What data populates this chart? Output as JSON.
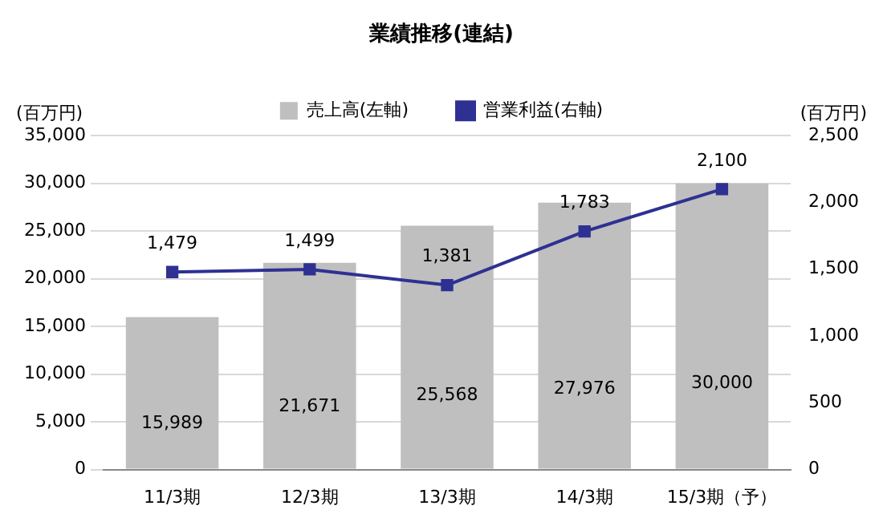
{
  "chart_data": {
    "type": "bar",
    "title": "業績推移(連結)",
    "ylabel": "(百万円)",
    "y2label": "(百万円)",
    "categories": [
      "11/3期",
      "12/3期",
      "13/3期",
      "14/3期",
      "15/3期（予）"
    ],
    "series": [
      {
        "name": "売上高(左軸)",
        "color": "#bfbfbf",
        "values": [
          15989,
          21671,
          25568,
          27976,
          30000
        ],
        "value_labels": [
          "15,989",
          "21,671",
          "25,568",
          "27,976",
          "30,000"
        ]
      },
      {
        "name": "営業利益(右軸)",
        "type": "line",
        "axis": "y2",
        "color": "#2e3192",
        "values": [
          1479,
          1499,
          1381,
          1783,
          2100
        ],
        "value_labels": [
          "1,479",
          "1,499",
          "1,381",
          "1,783",
          "2,100"
        ]
      }
    ],
    "ylim": [
      0,
      35000
    ],
    "yticks": [
      0,
      {
        "value": 5000,
        "label": "5,000"
      },
      {
        "value": 10000,
        "label": "10,000"
      },
      {
        "value": 15000,
        "label": "15,000"
      },
      {
        "value": 20000,
        "label": "20,000"
      },
      {
        "value": 25000,
        "label": "25,000"
      },
      {
        "value": 30000,
        "label": "30,000"
      },
      {
        "value": 35000,
        "label": "35,000"
      }
    ],
    "y2lim": [
      0,
      2500
    ],
    "y2ticks": [
      0,
      500,
      {
        "value": 1000,
        "label": "1,000"
      },
      {
        "value": 1500,
        "label": "1,500"
      },
      {
        "value": 2000,
        "label": "2,000"
      },
      {
        "value": 2500,
        "label": "2,500"
      }
    ],
    "grid": "y",
    "legend": "top",
    "marker": "square",
    "line_style": "solid"
  }
}
